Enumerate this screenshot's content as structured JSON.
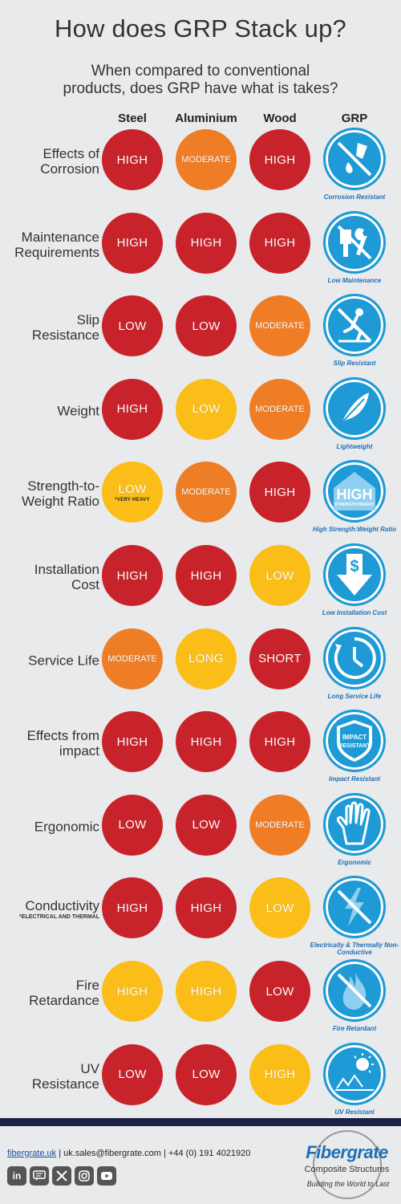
{
  "title": "How does GRP Stack up?",
  "subtitle_line1": "When compared to conventional",
  "subtitle_line2": "products, does GRP have what is takes?",
  "columns": [
    "Steel",
    "Aluminium",
    "Wood",
    "GRP"
  ],
  "rows": [
    {
      "label1": "Effects of",
      "label2": "Corrosion",
      "steel": "HIGH",
      "aluminium": "MODERATE",
      "wood": "HIGH",
      "grp_icon": "corrosion-icon",
      "grp_caption": "Corrosion Resistant"
    },
    {
      "label1": "Maintenance",
      "label2": "Requirements",
      "steel": "HIGH",
      "aluminium": "HIGH",
      "wood": "HIGH",
      "grp_icon": "maintenance-icon",
      "grp_caption": "Low Maintenance"
    },
    {
      "label1": "Slip",
      "label2": "Resistance",
      "steel": "LOW",
      "aluminium": "LOW",
      "wood": "MODERATE",
      "grp_icon": "slip-icon",
      "grp_caption": "Slip Resistant"
    },
    {
      "label1": "Weight",
      "label2": "",
      "steel": "HIGH",
      "aluminium": "LOW",
      "wood": "MODERATE",
      "grp_icon": "feather-icon",
      "grp_caption": "Lightweight"
    },
    {
      "label1": "Strength-to-",
      "label2": "Weight Ratio",
      "steel": "LOW",
      "steel_note": "*VERY HEAVY",
      "aluminium": "MODERATE",
      "wood": "HIGH",
      "grp_icon": "strength-icon",
      "grp_icon_text1": "HIGH",
      "grp_icon_text2": "STRENGTH:WEIGHT",
      "grp_caption": "High Strength:Weight Ratio"
    },
    {
      "label1": "Installation",
      "label2": "Cost",
      "steel": "HIGH",
      "aluminium": "HIGH",
      "wood": "LOW",
      "grp_icon": "cost-arrow-icon",
      "grp_caption": "Low Installation Cost"
    },
    {
      "label1": "Service Life",
      "label2": "",
      "steel": "MODERATE",
      "aluminium": "LONG",
      "wood": "SHORT",
      "grp_icon": "clock-icon",
      "grp_caption": "Long Service Life"
    },
    {
      "label1": "Effects from",
      "label2": "impact",
      "steel": "HIGH",
      "aluminium": "HIGH",
      "wood": "HIGH",
      "grp_icon": "impact-shield-icon",
      "grp_icon_text1": "IMPACT",
      "grp_icon_text2": "RESISTANT",
      "grp_caption": "Impact Resistant"
    },
    {
      "label1": "Ergonomic",
      "label2": "",
      "steel": "LOW",
      "aluminium": "LOW",
      "wood": "MODERATE",
      "grp_icon": "hand-icon",
      "grp_caption": "Ergonomic"
    },
    {
      "label1": "Conductivity",
      "label2": "",
      "label_note": "*ELECTRICAL AND THERMAL",
      "steel": "HIGH",
      "aluminium": "HIGH",
      "wood": "LOW",
      "grp_icon": "lightning-icon",
      "grp_caption": "Electrically & Thermally Non-Conductive"
    },
    {
      "label1": "Fire",
      "label2": "Retardance",
      "steel": "HIGH",
      "aluminium": "HIGH",
      "wood": "LOW",
      "grp_icon": "fire-icon",
      "grp_caption": "Fire Retardant"
    },
    {
      "label1": "UV",
      "label2": "Resistance",
      "steel": "LOW",
      "aluminium": "LOW",
      "wood": "HIGH",
      "grp_icon": "sun-icon",
      "grp_caption": "UV Resistant"
    }
  ],
  "colors": {
    "red": "#c8232b",
    "orange": "#ee7d26",
    "yellow": "#fbbd18",
    "grp_blue": "#1e9ad6"
  },
  "footer": {
    "website": "fibergrate.uk",
    "email": "uk.sales@fibergrate.com",
    "phone": "+44 (0) 191 4021920",
    "separator": "|",
    "social": [
      "in",
      "chat",
      "X",
      "instagram",
      "youtube"
    ],
    "logo_name": "Fibergrate",
    "logo_sub": "Composite Structures",
    "logo_tag": "Building the World to Last"
  }
}
